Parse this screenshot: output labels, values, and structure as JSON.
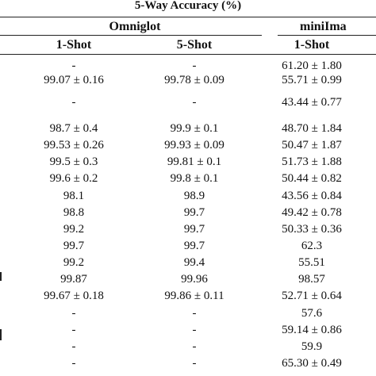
{
  "table": {
    "title": "5-Way Accuracy (%)",
    "groups": [
      {
        "label": "Omniglot"
      },
      {
        "label": "miniIma"
      }
    ],
    "subheaders": [
      "1-Shot",
      "5-Shot",
      "1-Shot"
    ],
    "rows": [
      [
        "-",
        "-",
        "61.20 ± 1.80"
      ],
      [
        "99.07 ± 0.16",
        "99.78 ± 0.09",
        "55.71 ± 0.99"
      ],
      [
        "-",
        "-",
        "43.44 ± 0.77"
      ],
      [
        "98.7 ± 0.4",
        "99.9 ± 0.1",
        "48.70 ± 1.84"
      ],
      [
        "99.53 ± 0.26",
        "99.93 ± 0.09",
        "50.47 ± 1.87"
      ],
      [
        "99.5 ± 0.3",
        "99.81 ± 0.1",
        "51.73 ± 1.88"
      ],
      [
        "99.6 ± 0.2",
        "99.8 ± 0.1",
        "50.44 ± 0.82"
      ],
      [
        "98.1",
        "98.9",
        "43.56 ± 0.84"
      ],
      [
        "98.8",
        "99.7",
        "49.42 ± 0.78"
      ],
      [
        "99.2",
        "99.7",
        "50.33 ± 0.36"
      ],
      [
        "99.7",
        "99.7",
        "62.3"
      ],
      [
        "99.2",
        "99.4",
        "55.51"
      ],
      [
        "99.87",
        "99.96",
        "98.57"
      ],
      [
        "99.67 ± 0.18",
        "99.86 ± 0.11",
        "52.71 ± 0.64"
      ],
      [
        "-",
        "-",
        "57.6"
      ],
      [
        "-",
        "-",
        "59.14 ± 0.86"
      ],
      [
        "-",
        "-",
        "59.9"
      ],
      [
        "-",
        "-",
        "65.30 ± 0.49"
      ]
    ]
  }
}
